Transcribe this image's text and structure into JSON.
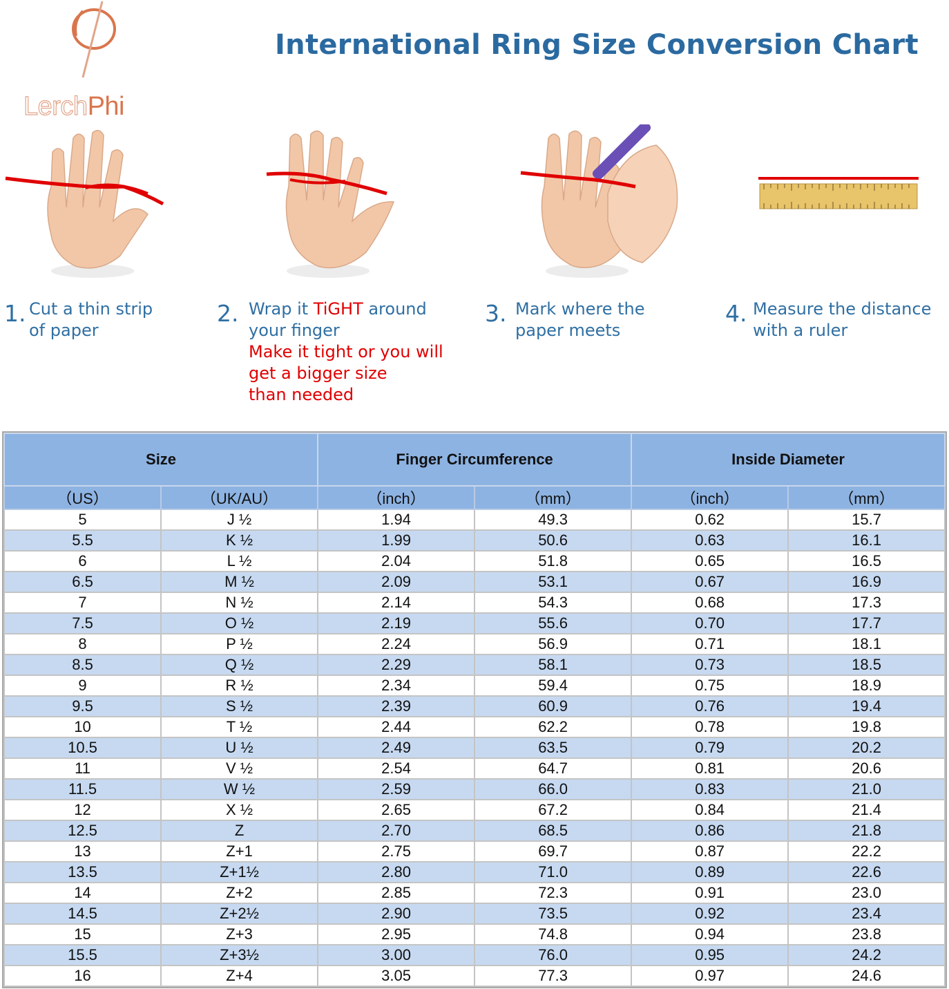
{
  "brand": {
    "name_part1": "Lerch",
    "name_part2": "Phi",
    "logo_icon": "phi-icon"
  },
  "title": "International Ring Size Conversion Chart",
  "steps": [
    {
      "number": "1.",
      "lines": [
        "Cut a thin strip",
        "of paper"
      ],
      "icon": "hand-with-string"
    },
    {
      "number": "2.",
      "line1_pre": "Wrap it ",
      "line1_highlight": "TiGHT",
      "line1_post": " around",
      "line2": "your finger",
      "warning_lines": [
        "Make it tight or you will",
        "get a bigger size",
        "than needed"
      ],
      "icon": "hand-wrapped-string"
    },
    {
      "number": "3.",
      "lines": [
        "Mark where the",
        "paper meets"
      ],
      "icon": "hand-marking-pen"
    },
    {
      "number": "4.",
      "lines": [
        "Measure the distance",
        "with a ruler"
      ],
      "icon": "ruler-with-string"
    }
  ],
  "table": {
    "groups": [
      "Size",
      "Finger Circumference",
      "Inside Diameter"
    ],
    "units": [
      "（US）",
      "（UK/AU）",
      "（inch）",
      "（mm）",
      "（inch）",
      "（mm）"
    ],
    "rows": [
      [
        "5",
        "J ½",
        "1.94",
        "49.3",
        "0.62",
        "15.7"
      ],
      [
        "5.5",
        "K ½",
        "1.99",
        "50.6",
        "0.63",
        "16.1"
      ],
      [
        "6",
        "L ½",
        "2.04",
        "51.8",
        "0.65",
        "16.5"
      ],
      [
        "6.5",
        "M ½",
        "2.09",
        "53.1",
        "0.67",
        "16.9"
      ],
      [
        "7",
        "N ½",
        "2.14",
        "54.3",
        "0.68",
        "17.3"
      ],
      [
        "7.5",
        "O ½",
        "2.19",
        "55.6",
        "0.70",
        "17.7"
      ],
      [
        "8",
        "P ½",
        "2.24",
        "56.9",
        "0.71",
        "18.1"
      ],
      [
        "8.5",
        "Q ½",
        "2.29",
        "58.1",
        "0.73",
        "18.5"
      ],
      [
        "9",
        "R ½",
        "2.34",
        "59.4",
        "0.75",
        "18.9"
      ],
      [
        "9.5",
        "S ½",
        "2.39",
        "60.9",
        "0.76",
        "19.4"
      ],
      [
        "10",
        "T ½",
        "2.44",
        "62.2",
        "0.78",
        "19.8"
      ],
      [
        "10.5",
        "U ½",
        "2.49",
        "63.5",
        "0.79",
        "20.2"
      ],
      [
        "11",
        "V ½",
        "2.54",
        "64.7",
        "0.81",
        "20.6"
      ],
      [
        "11.5",
        "W ½",
        "2.59",
        "66.0",
        "0.83",
        "21.0"
      ],
      [
        "12",
        "X ½",
        "2.65",
        "67.2",
        "0.84",
        "21.4"
      ],
      [
        "12.5",
        "Z",
        "2.70",
        "68.5",
        "0.86",
        "21.8"
      ],
      [
        "13",
        "Z+1",
        "2.75",
        "69.7",
        "0.87",
        "22.2"
      ],
      [
        "13.5",
        "Z+1½",
        "2.80",
        "71.0",
        "0.89",
        "22.6"
      ],
      [
        "14",
        "Z+2",
        "2.85",
        "72.3",
        "0.91",
        "23.0"
      ],
      [
        "14.5",
        "Z+2½",
        "2.90",
        "73.5",
        "0.92",
        "23.4"
      ],
      [
        "15",
        "Z+3",
        "2.95",
        "74.8",
        "0.94",
        "23.8"
      ],
      [
        "15.5",
        "Z+3½",
        "3.00",
        "76.0",
        "0.95",
        "24.2"
      ],
      [
        "16",
        "Z+4",
        "3.05",
        "77.3",
        "0.97",
        "24.6"
      ]
    ]
  },
  "colors": {
    "title": "#2b6aa0",
    "step_text": "#2f6fa3",
    "warning": "#e00000",
    "header_bg": "#8db3e2",
    "alt_row_bg": "#c6d9f1",
    "logo_accent": "#d9764e"
  }
}
